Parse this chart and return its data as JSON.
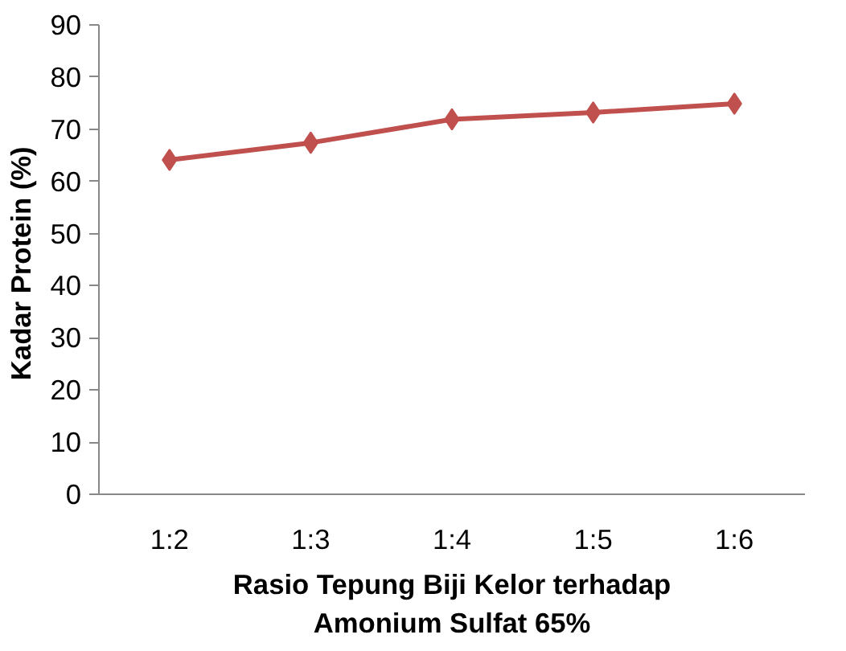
{
  "chart_data": {
    "type": "line",
    "xlabel": "Rasio Tepung Biji Kelor terhadap Amonium Sulfat 65%",
    "ylabel": "Kadar Protein  (%)",
    "categories": [
      "1:2",
      "1:3",
      "1:4",
      "1:5",
      "1:6"
    ],
    "series": [
      {
        "color": "#c0504d",
        "values": [
          64.1,
          67.4,
          71.9,
          73.2,
          74.9
        ]
      }
    ],
    "ylim": [
      0,
      90
    ],
    "yticks": [
      0,
      10,
      20,
      30,
      40,
      50,
      60,
      70,
      80,
      90
    ],
    "grid": false,
    "marker": "diamond",
    "line_style": "solid"
  }
}
